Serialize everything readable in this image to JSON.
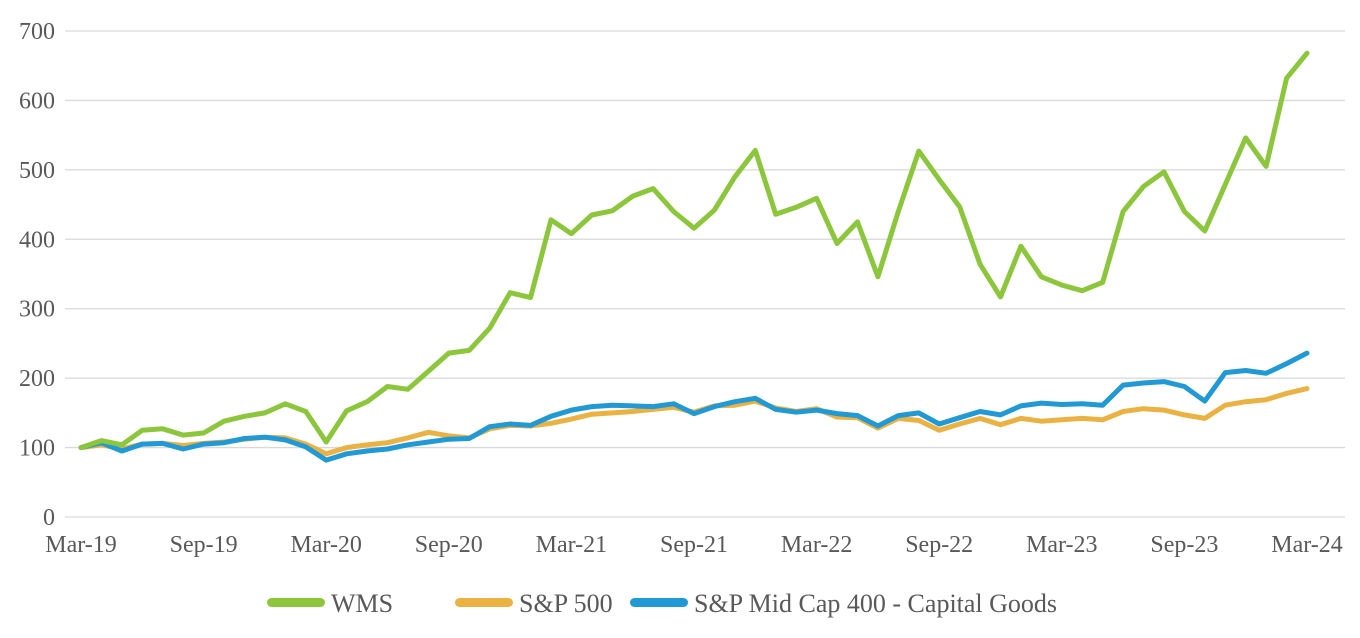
{
  "chart_data": {
    "type": "line",
    "title": "",
    "x_axis": {
      "start": "Mar-19",
      "end": "Mar-24",
      "frequency": "monthly",
      "tick_labels": [
        "Mar-19",
        "Sep-19",
        "Mar-20",
        "Sep-20",
        "Mar-21",
        "Sep-21",
        "Mar-22",
        "Sep-22",
        "Mar-23",
        "Sep-23",
        "Mar-24"
      ],
      "points_per_tick": 6
    },
    "ylim": [
      0,
      700
    ],
    "y_ticks": [
      0,
      100,
      200,
      300,
      400,
      500,
      600,
      700
    ],
    "grid": true,
    "legend_position": "bottom",
    "series": [
      {
        "name": "WMS",
        "color": "#8CC63C",
        "values": [
          100,
          110,
          104,
          125,
          127,
          118,
          121,
          138,
          145,
          150,
          163,
          152,
          108,
          153,
          166,
          188,
          184,
          210,
          236,
          240,
          272,
          323,
          316,
          428,
          408,
          435,
          441,
          462,
          473,
          440,
          416,
          442,
          490,
          528,
          436,
          446,
          459,
          394,
          425,
          346,
          440,
          527,
          486,
          447,
          364,
          317,
          390,
          346,
          334,
          326,
          338,
          440,
          476,
          497,
          440,
          412,
          479,
          546,
          505,
          632,
          668
        ]
      },
      {
        "name": "S&P 500",
        "color": "#EAB242",
        "values": [
          100,
          104,
          98,
          105,
          106,
          103,
          106,
          108,
          112,
          115,
          114,
          105,
          91,
          100,
          104,
          107,
          114,
          122,
          117,
          114,
          127,
          132,
          131,
          135,
          141,
          148,
          150,
          152,
          155,
          158,
          151,
          160,
          161,
          167,
          157,
          152,
          156,
          144,
          143,
          128,
          142,
          139,
          125,
          134,
          142,
          133,
          142,
          138,
          140,
          142,
          140,
          152,
          156,
          154,
          147,
          142,
          161,
          166,
          169,
          178,
          185
        ]
      },
      {
        "name": "S&P Mid Cap 400 - Capital Goods",
        "color": "#2199D4",
        "values": [
          100,
          107,
          95,
          105,
          106,
          98,
          105,
          107,
          113,
          115,
          111,
          101,
          82,
          91,
          95,
          98,
          104,
          108,
          112,
          113,
          130,
          134,
          132,
          145,
          154,
          159,
          161,
          160,
          159,
          163,
          149,
          159,
          166,
          171,
          155,
          151,
          154,
          149,
          146,
          131,
          146,
          150,
          134,
          143,
          152,
          147,
          160,
          164,
          162,
          163,
          161,
          190,
          193,
          195,
          188,
          167,
          208,
          211,
          207,
          221,
          236
        ]
      }
    ]
  },
  "style": {
    "grid_color": "#D9D9D9",
    "text_color": "#595959",
    "background": "#FFFFFF",
    "line_width": 5
  }
}
